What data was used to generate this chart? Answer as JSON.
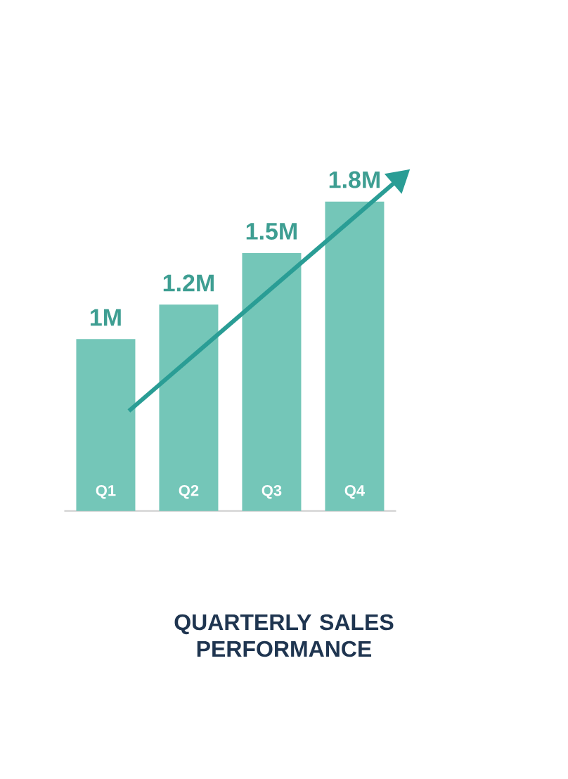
{
  "chart_data": {
    "type": "bar",
    "title": "QUARTERLY SALES PERFORMANCE",
    "categories": [
      "Q1",
      "Q2",
      "Q3",
      "Q4"
    ],
    "values": [
      1,
      1.2,
      1.5,
      1.8
    ],
    "value_labels": [
      "1M",
      "1.2M",
      "1.5M",
      "1.8M"
    ],
    "color": "#74c6b8"
  }
}
